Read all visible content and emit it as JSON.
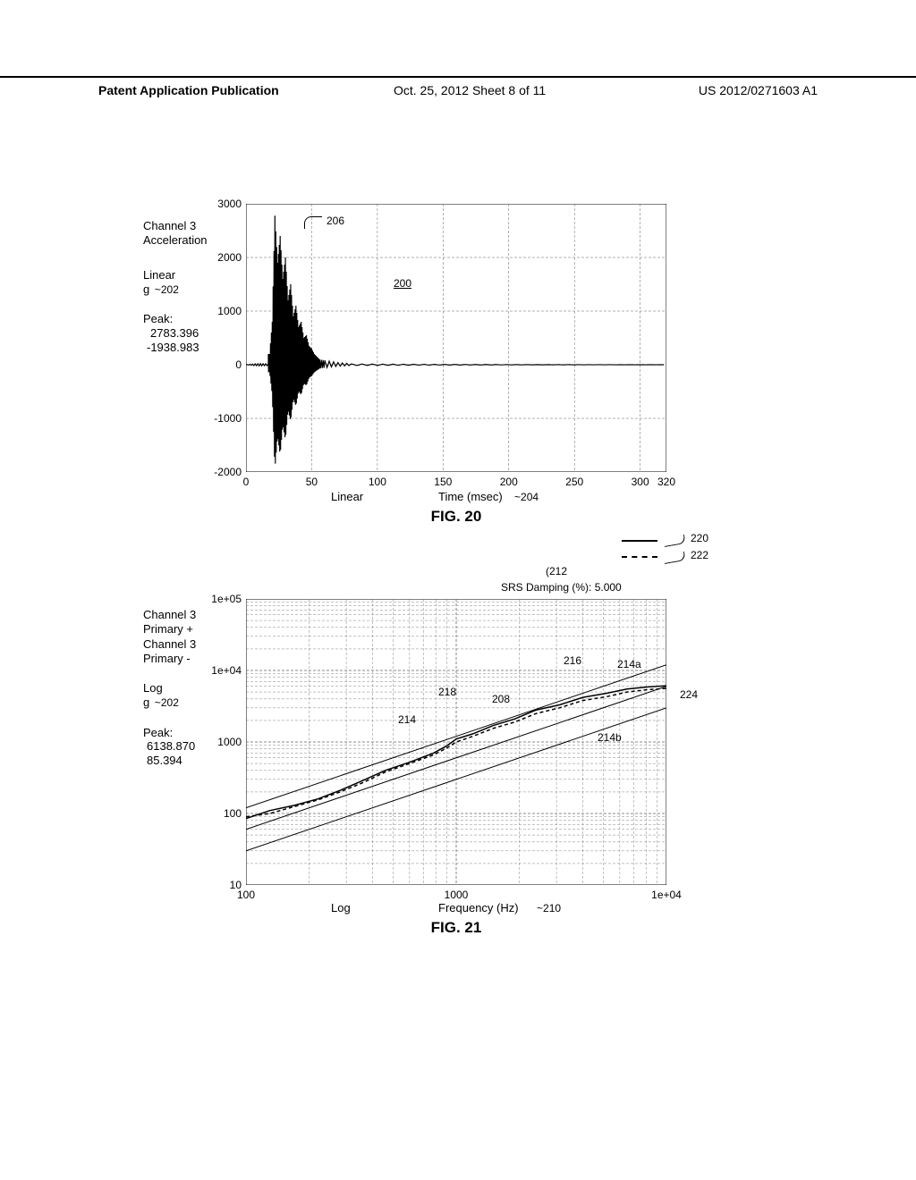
{
  "header": {
    "left": "Patent Application Publication",
    "center": "Oct. 25, 2012  Sheet 8 of 11",
    "right": "US 2012/0271603 A1"
  },
  "fig20": {
    "type": "line",
    "title": "FIG. 20",
    "side_labels": {
      "channel": "Channel  3\nAcceleration",
      "scale": "Linear",
      "unit": "g",
      "unit_callout": "202",
      "peak_title": "Peak:",
      "peak_pos": "2783.396",
      "peak_neg": "-1938.983"
    },
    "callouts": {
      "206": "206",
      "200": "200",
      "204": "204"
    },
    "x_axis": {
      "label": "Time (msec)",
      "scale_label": "Linear",
      "min": 0,
      "max": 320,
      "ticks": [
        0,
        50,
        100,
        150,
        200,
        250,
        300,
        320
      ]
    },
    "y_axis": {
      "min": -2000,
      "max": 3000,
      "ticks": [
        -2000,
        -1000,
        0,
        1000,
        2000,
        3000
      ]
    },
    "grid_color": "#666666",
    "line_color": "#000000",
    "background_color": "#ffffff",
    "waveform": {
      "burst_start_ms": 18,
      "burst_end_ms": 55,
      "envelope": [
        [
          18,
          200
        ],
        [
          20,
          800
        ],
        [
          22,
          2780
        ],
        [
          24,
          1900
        ],
        [
          26,
          2400
        ],
        [
          28,
          1600
        ],
        [
          30,
          2000
        ],
        [
          32,
          1200
        ],
        [
          34,
          1500
        ],
        [
          36,
          900
        ],
        [
          38,
          1100
        ],
        [
          40,
          700
        ],
        [
          42,
          800
        ],
        [
          44,
          500
        ],
        [
          46,
          550
        ],
        [
          48,
          350
        ],
        [
          50,
          300
        ],
        [
          52,
          200
        ],
        [
          54,
          150
        ],
        [
          56,
          100
        ],
        [
          60,
          80
        ],
        [
          70,
          40
        ],
        [
          80,
          20
        ]
      ]
    }
  },
  "fig21": {
    "type": "line-loglog",
    "title": "FIG. 21",
    "srs_label": "SRS Damping (%): 5.000",
    "srs_callout": "212",
    "side_labels": {
      "channel_a": "Channel  3\nPrimary +",
      "channel_b": "Channel  3\nPrimary -",
      "scale": "Log",
      "unit": "g",
      "unit_callout": "202",
      "peak_title": "Peak:",
      "peak_pos": "6138.870",
      "peak_neg": "85.394"
    },
    "callouts": {
      "216": "216",
      "214a": "214a",
      "218": "218",
      "208": "208",
      "214": "214",
      "224": "224",
      "214b": "214b",
      "220": "220",
      "222": "222",
      "210": "210"
    },
    "x_axis": {
      "label": "Frequency (Hz)",
      "scale_label": "Log",
      "min": 100,
      "max": 10000,
      "ticks": [
        100,
        1000,
        10000
      ],
      "tick_labels": [
        "100",
        "1000",
        "1e+04"
      ]
    },
    "y_axis": {
      "min": 10,
      "max": 100000,
      "ticks": [
        10,
        100,
        1000,
        10000,
        100000
      ],
      "tick_labels": [
        "10",
        "100",
        "1000",
        "1e+04",
        "1e+05"
      ]
    },
    "grid_color": "#666666",
    "line_solid_color": "#000000",
    "line_dashed_color": "#000000",
    "background_color": "#ffffff",
    "legend": {
      "solid": "220",
      "dashed": "222"
    },
    "tolerance_upper": [
      [
        100,
        120
      ],
      [
        10000,
        12000
      ]
    ],
    "tolerance_nominal": [
      [
        100,
        60
      ],
      [
        10000,
        6000
      ]
    ],
    "tolerance_lower": [
      [
        100,
        30
      ],
      [
        10000,
        3000
      ]
    ],
    "srs_primary_plus": [
      [
        100,
        85
      ],
      [
        130,
        110
      ],
      [
        170,
        130
      ],
      [
        220,
        160
      ],
      [
        280,
        210
      ],
      [
        360,
        290
      ],
      [
        460,
        400
      ],
      [
        600,
        520
      ],
      [
        780,
        700
      ],
      [
        900,
        880
      ],
      [
        1000,
        1100
      ],
      [
        1200,
        1300
      ],
      [
        1500,
        1700
      ],
      [
        1900,
        2100
      ],
      [
        2400,
        2800
      ],
      [
        3100,
        3300
      ],
      [
        4000,
        4200
      ],
      [
        5200,
        4800
      ],
      [
        6500,
        5500
      ],
      [
        8200,
        5900
      ],
      [
        10000,
        6100
      ]
    ],
    "srs_primary_minus": [
      [
        100,
        90
      ],
      [
        130,
        100
      ],
      [
        170,
        125
      ],
      [
        220,
        155
      ],
      [
        280,
        200
      ],
      [
        360,
        270
      ],
      [
        460,
        380
      ],
      [
        600,
        500
      ],
      [
        780,
        660
      ],
      [
        900,
        820
      ],
      [
        1000,
        1000
      ],
      [
        1200,
        1200
      ],
      [
        1500,
        1550
      ],
      [
        1900,
        1900
      ],
      [
        2400,
        2500
      ],
      [
        3100,
        3000
      ],
      [
        4000,
        3800
      ],
      [
        5200,
        4300
      ],
      [
        6500,
        5000
      ],
      [
        8200,
        5400
      ],
      [
        10000,
        5600
      ]
    ]
  }
}
